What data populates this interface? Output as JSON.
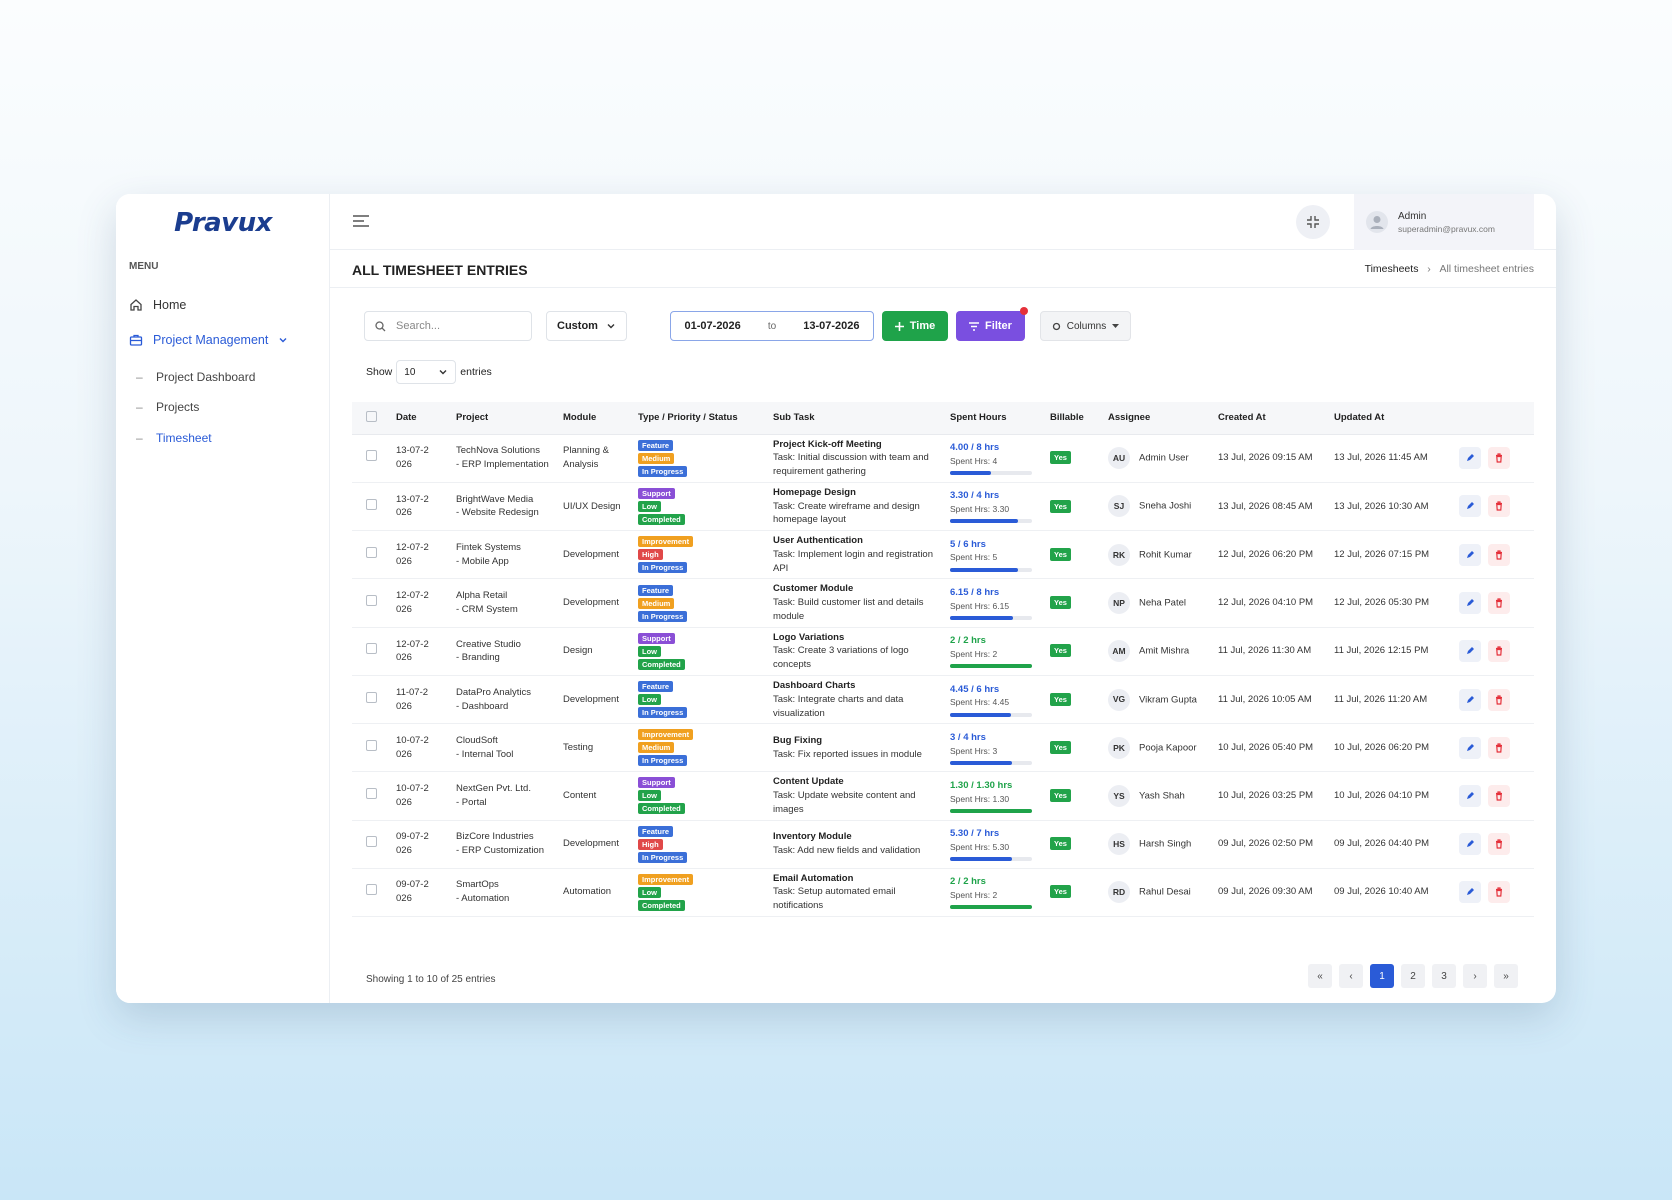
{
  "header": {
    "logo": "Pravux",
    "user_name": "Admin",
    "user_email": "superadmin@pravux.com"
  },
  "sidebar": {
    "menu_label": "MENU",
    "items": [
      "Home",
      "Project Management"
    ],
    "subitems": [
      "Project Dashboard",
      "Projects",
      "Timesheet"
    ]
  },
  "page": {
    "title": "ALL TIMESHEET ENTRIES",
    "breadcrumb": [
      "Timesheets",
      "All timesheet entries"
    ]
  },
  "toolbar": {
    "search_placeholder": "Search...",
    "range": "Custom",
    "date_from": "01-07-2026",
    "date_sep": "to",
    "date_to": "13-07-2026",
    "time_button": "Time",
    "filter_button": "Filter",
    "columns_button": "Columns",
    "show_label": "Show",
    "show_count": "10",
    "entries_label": "entries"
  },
  "table": {
    "columns": [
      "Date",
      "Project",
      "Module",
      "Type / Priority / Status",
      "Sub Task",
      "Spent Hours",
      "Billable",
      "Assignee",
      "Created At",
      "Updated At"
    ],
    "rows": [
      {
        "date": "13-07-2026",
        "project": "TechNova Solutions",
        "subproject": "- ERP Implementation",
        "module": "Planning & Analysis",
        "badges": [
          {
            "label": "Feature",
            "color": "#3b6fd8"
          },
          {
            "label": "Medium",
            "color": "#f0a020"
          },
          {
            "label": "In Progress",
            "color": "#3b6fd8"
          }
        ],
        "task": "Project Kick-off Meeting",
        "desc": "Task: Initial discussion with team and requirement gathering",
        "hours": "4.00 / 8 hrs",
        "spent": "Spent Hrs: 4",
        "billable": "Yes",
        "initials": "AU",
        "assignee": "Admin User",
        "created": "13 Jul, 2026 09:15 AM",
        "updated": "13 Jul, 2026 11:45 AM"
      },
      {
        "date": "13-07-2026",
        "project": "BrightWave Media",
        "subproject": "- Website Redesign",
        "module": "UI/UX Design",
        "badges": [
          {
            "label": "Support",
            "color": "#8a4fd6"
          },
          {
            "label": "Low",
            "color": "#22a34a"
          },
          {
            "label": "Completed",
            "color": "#22a34a"
          }
        ],
        "task": "Homepage Design",
        "desc": "Task: Create wireframe and design homepage layout",
        "hours": "3.30 / 4 hrs",
        "spent": "Spent Hrs: 3.30",
        "billable": "Yes",
        "initials": "SJ",
        "assignee": "Sneha Joshi",
        "created": "13 Jul, 2026 08:45 AM",
        "updated": "13 Jul, 2026 10:30 AM"
      },
      {
        "date": "12-07-2026",
        "project": "Fintek Systems",
        "subproject": "- Mobile App",
        "module": "Development",
        "badges": [
          {
            "label": "Improvement",
            "color": "#f0a020"
          },
          {
            "label": "High",
            "color": "#e04848"
          },
          {
            "label": "In Progress",
            "color": "#3b6fd8"
          }
        ],
        "task": "User Authentication",
        "desc": "Task: Implement login and registration API",
        "hours": "5 / 6 hrs",
        "spent": "Spent Hrs: 5",
        "billable": "Yes",
        "initials": "RK",
        "assignee": "Rohit Kumar",
        "created": "12 Jul, 2026 06:20 PM",
        "updated": "12 Jul, 2026 07:15 PM"
      },
      {
        "date": "12-07-2026",
        "project": "Alpha Retail",
        "subproject": "- CRM System",
        "module": "Development",
        "badges": [
          {
            "label": "Feature",
            "color": "#3b6fd8"
          },
          {
            "label": "Medium",
            "color": "#f0a020"
          },
          {
            "label": "In Progress",
            "color": "#3b6fd8"
          }
        ],
        "task": "Customer Module",
        "desc": "Task: Build customer list and details module",
        "hours": "6.15 / 8 hrs",
        "spent": "Spent Hrs: 6.15",
        "billable": "Yes",
        "initials": "NP",
        "assignee": "Neha Patel",
        "created": "12 Jul, 2026 04:10 PM",
        "updated": "12 Jul, 2026 05:30 PM"
      },
      {
        "date": "12-07-2026",
        "project": "Creative Studio",
        "subproject": "- Branding",
        "module": "Design",
        "badges": [
          {
            "label": "Support",
            "color": "#8a4fd6"
          },
          {
            "label": "Low",
            "color": "#22a34a"
          },
          {
            "label": "Completed",
            "color": "#22a34a"
          }
        ],
        "task": "Logo Variations",
        "desc": "Task: Create 3 variations of logo concepts",
        "hours": "2 / 2 hrs",
        "spent": "Spent Hrs: 2",
        "billable": "Yes",
        "initials": "AM",
        "assignee": "Amit Mishra",
        "created": "11 Jul, 2026 11:30 AM",
        "updated": "11 Jul, 2026 12:15 PM"
      },
      {
        "date": "11-07-2026",
        "project": "DataPro Analytics",
        "subproject": "- Dashboard",
        "module": "Development",
        "badges": [
          {
            "label": "Feature",
            "color": "#3b6fd8"
          },
          {
            "label": "Low",
            "color": "#22a34a"
          },
          {
            "label": "In Progress",
            "color": "#3b6fd8"
          }
        ],
        "task": "Dashboard Charts",
        "desc": "Task: Integrate charts and data visualization",
        "hours": "4.45 / 6 hrs",
        "spent": "Spent Hrs: 4.45",
        "billable": "Yes",
        "initials": "VG",
        "assignee": "Vikram Gupta",
        "created": "11 Jul, 2026 10:05 AM",
        "updated": "11 Jul, 2026 11:20 AM"
      },
      {
        "date": "10-07-2026",
        "project": "CloudSoft",
        "subproject": "- Internal Tool",
        "module": "Testing",
        "badges": [
          {
            "label": "Improvement",
            "color": "#f0a020"
          },
          {
            "label": "Medium",
            "color": "#f0a020"
          },
          {
            "label": "In Progress",
            "color": "#3b6fd8"
          }
        ],
        "task": "Bug Fixing",
        "desc": "Task: Fix reported issues in module",
        "hours": "3 / 4 hrs",
        "spent": "Spent Hrs: 3",
        "billable": "Yes",
        "initials": "PK",
        "assignee": "Pooja Kapoor",
        "created": "10 Jul, 2026 05:40 PM",
        "updated": "10 Jul, 2026 06:20 PM"
      },
      {
        "date": "10-07-2026",
        "project": "NextGen Pvt. Ltd.",
        "subproject": "- Portal",
        "module": "Content",
        "badges": [
          {
            "label": "Support",
            "color": "#8a4fd6"
          },
          {
            "label": "Low",
            "color": "#22a34a"
          },
          {
            "label": "Completed",
            "color": "#22a34a"
          }
        ],
        "task": "Content Update",
        "desc": "Task: Update website content and images",
        "hours": "1.30 / 1.30 hrs",
        "spent": "Spent Hrs: 1.30",
        "billable": "Yes",
        "initials": "YS",
        "assignee": "Yash Shah",
        "created": "10 Jul, 2026 03:25 PM",
        "updated": "10 Jul, 2026 04:10 PM"
      },
      {
        "date": "09-07-2026",
        "project": "BizCore Industries",
        "subproject": "- ERP Customization",
        "module": "Development",
        "badges": [
          {
            "label": "Feature",
            "color": "#3b6fd8"
          },
          {
            "label": "High",
            "color": "#e04848"
          },
          {
            "label": "In Progress",
            "color": "#3b6fd8"
          }
        ],
        "task": "Inventory Module",
        "desc": "Task: Add new fields and validation",
        "hours": "5.30 / 7 hrs",
        "spent": "Spent Hrs: 5.30",
        "billable": "Yes",
        "initials": "HS",
        "assignee": "Harsh Singh",
        "created": "09 Jul, 2026 02:50 PM",
        "updated": "09 Jul, 2026 04:40 PM"
      },
      {
        "date": "09-07-2026",
        "project": "SmartOps",
        "subproject": "- Automation",
        "module": "Automation",
        "badges": [
          {
            "label": "Improvement",
            "color": "#f0a020"
          },
          {
            "label": "Low",
            "color": "#22a34a"
          },
          {
            "label": "Completed",
            "color": "#22a34a"
          }
        ],
        "task": "Email Automation",
        "desc": "Task: Setup automated email notifications",
        "hours": "2 / 2 hrs",
        "spent": "Spent Hrs: 2",
        "billable": "Yes",
        "initials": "RD",
        "assignee": "Rahul Desai",
        "created": "09 Jul, 2026 09:30 AM",
        "updated": "09 Jul, 2026 10:40 AM"
      }
    ]
  },
  "footer": {
    "summary": "Showing 1 to 10 of 25 entries",
    "pages": [
      "«",
      "‹",
      "1",
      "2",
      "3",
      "›",
      "»"
    ]
  }
}
